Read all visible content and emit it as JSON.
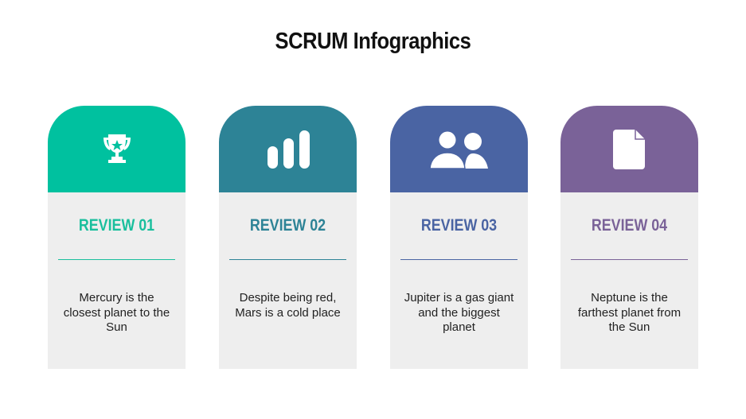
{
  "title": "SCRUM Infographics",
  "cards": [
    {
      "label": "REVIEW 01",
      "text": "Mercury is the closest planet to the Sun",
      "icon": "trophy-icon",
      "color": "#00C19F"
    },
    {
      "label": "REVIEW 02",
      "text": "Despite being red, Mars is a cold place",
      "icon": "bar-chart-icon",
      "color": "#2D8396"
    },
    {
      "label": "REVIEW 03",
      "text": "Jupiter is a gas giant and the biggest planet",
      "icon": "users-icon",
      "color": "#4A64A3"
    },
    {
      "label": "REVIEW 04",
      "text": "Neptune is the farthest planet from the Sun",
      "icon": "document-icon",
      "color": "#7A6298"
    }
  ]
}
